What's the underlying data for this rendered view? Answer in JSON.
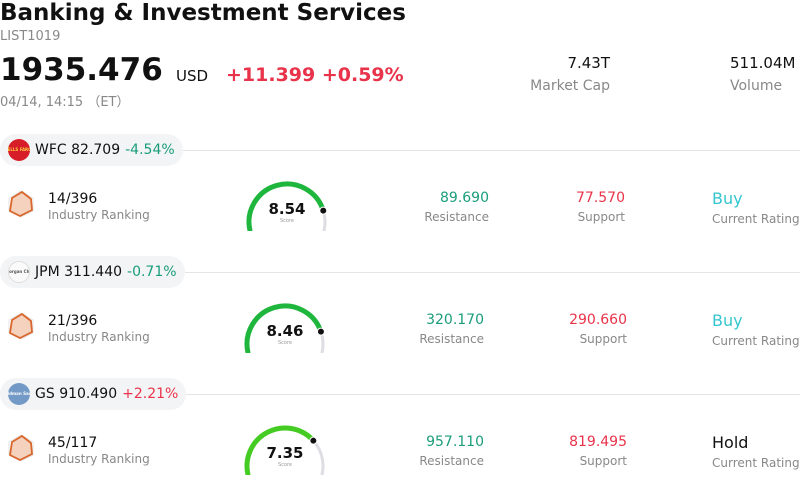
{
  "header": {
    "title": "Banking & Investment Services",
    "code": "LIST1019",
    "price": "1935.476",
    "currency": "USD",
    "change": "+11.399 +0.59%",
    "timestamp": "04/14, 14:15 （ET）"
  },
  "stats": {
    "market_cap_value": "7.43T",
    "market_cap_label": "Market Cap",
    "volume_value": "511.04M",
    "volume_label": "Volume"
  },
  "stocks": [
    {
      "symbol": "WFC",
      "price": "82.709",
      "change": "-4.54%",
      "logo_text": "WELLS FARGO",
      "logo_color": "#d71e28",
      "rank": "14/396",
      "rank_label": "Industry Ranking",
      "score": "8.54",
      "score_value": 8.54,
      "score_label": "Score",
      "resistance": "89.690",
      "resistance_label": "Resistance",
      "support": "77.570",
      "support_label": "Support",
      "rating": "Buy",
      "rating_label": "Current Rating"
    },
    {
      "symbol": "JPM",
      "price": "311.440",
      "change": "-0.71%",
      "logo_text": "JPMorgan Chase",
      "logo_color": "#fafafa",
      "rank": "21/396",
      "rank_label": "Industry Ranking",
      "score": "8.46",
      "score_value": 8.46,
      "score_label": "Score",
      "resistance": "320.170",
      "resistance_label": "Resistance",
      "support": "290.660",
      "support_label": "Support",
      "rating": "Buy",
      "rating_label": "Current Rating"
    },
    {
      "symbol": "GS",
      "price": "910.490",
      "change": "+2.21%",
      "logo_text": "Goldman Sachs",
      "logo_color": "#7399c6",
      "rank": "45/117",
      "rank_label": "Industry Ranking",
      "score": "7.35",
      "score_value": 7.35,
      "score_label": "Score",
      "resistance": "957.110",
      "resistance_label": "Resistance",
      "support": "819.495",
      "support_label": "Support",
      "rating": "Hold",
      "rating_label": "Current Rating"
    }
  ],
  "colors": {
    "positive_change": "#e8334a",
    "negative_change": "#1a9d7b",
    "gauge_high": "#1fb63d",
    "gauge_mid": "#44cc22",
    "gauge_track": "#dddde3",
    "buy": "#35c6cf",
    "rank_icon": "#d9662b"
  },
  "icons": {
    "rank": "radar-chart-icon",
    "gauge": "score-gauge-icon"
  }
}
